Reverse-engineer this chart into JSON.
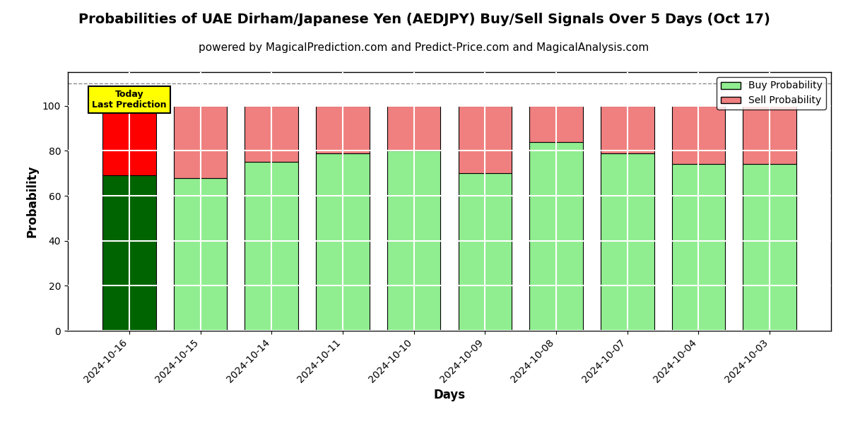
{
  "title": "Probabilities of UAE Dirham/Japanese Yen (AEDJPY) Buy/Sell Signals Over 5 Days (Oct 17)",
  "subtitle": "powered by MagicalPrediction.com and Predict-Price.com and MagicalAnalysis.com",
  "xlabel": "Days",
  "ylabel": "Probability",
  "categories": [
    "2024-10-16",
    "2024-10-15",
    "2024-10-14",
    "2024-10-11",
    "2024-10-10",
    "2024-10-09",
    "2024-10-08",
    "2024-10-07",
    "2024-10-04",
    "2024-10-03"
  ],
  "buy_values": [
    69,
    68,
    75,
    79,
    80,
    70,
    84,
    79,
    74,
    74
  ],
  "sell_values": [
    31,
    32,
    25,
    21,
    20,
    30,
    16,
    21,
    26,
    26
  ],
  "buy_colors": [
    "#006400",
    "#90EE90",
    "#90EE90",
    "#90EE90",
    "#90EE90",
    "#90EE90",
    "#90EE90",
    "#90EE90",
    "#90EE90",
    "#90EE90"
  ],
  "sell_colors": [
    "#FF0000",
    "#F08080",
    "#F08080",
    "#F08080",
    "#F08080",
    "#F08080",
    "#F08080",
    "#F08080",
    "#F08080",
    "#F08080"
  ],
  "today_label": "Today\nLast Prediction",
  "today_bg": "#FFFF00",
  "legend_buy_color": "#90EE90",
  "legend_sell_color": "#F08080",
  "ylim": [
    0,
    115
  ],
  "yticks": [
    0,
    20,
    40,
    60,
    80,
    100
  ],
  "dashed_line_y": 110,
  "background_color": "#ffffff",
  "grid_color": "#ffffff",
  "bar_edge_color": "#000000",
  "title_fontsize": 14,
  "subtitle_fontsize": 11
}
